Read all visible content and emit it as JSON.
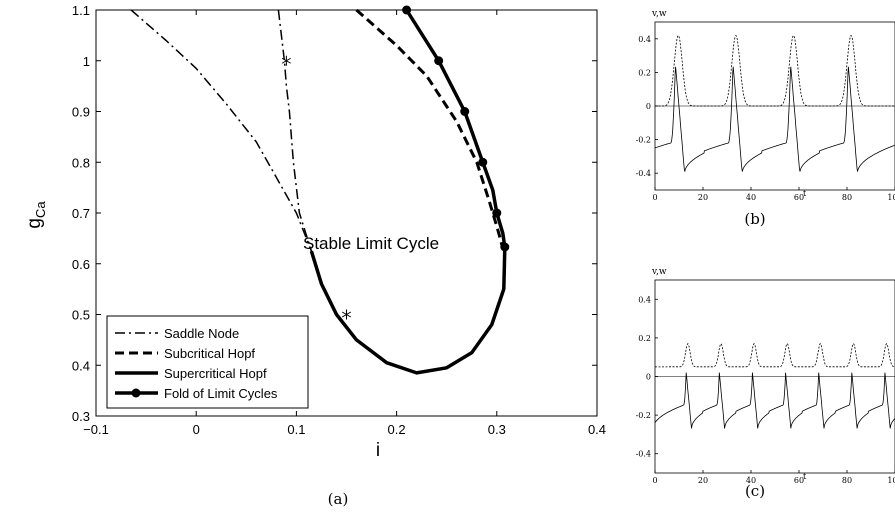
{
  "chart_data": [
    {
      "type": "line",
      "panel_label": "(a)",
      "xlabel": "i",
      "ylabel": "g",
      "ylabel_sub": "Ca",
      "xlim": [
        -0.1,
        0.4
      ],
      "ylim": [
        0.3,
        1.1
      ],
      "x_ticks": [
        -0.1,
        0,
        0.1,
        0.2,
        0.3,
        0.4
      ],
      "x_tick_labels": [
        "−0.1",
        "0",
        "0.1",
        "0.2",
        "0.3",
        "0.4"
      ],
      "y_ticks": [
        0.3,
        0.4,
        0.5,
        0.6,
        0.7,
        0.8,
        0.9,
        1,
        1.1
      ],
      "y_tick_labels": [
        "0.3",
        "0.4",
        "0.5",
        "0.6",
        "0.7",
        "0.8",
        "0.9",
        "1",
        "1.1"
      ],
      "grid": false,
      "legend_position": "bottom-left",
      "annotation": "Stable Limit Cycle",
      "series": [
        {
          "name": "Saddle Node",
          "style": "dashdot",
          "segments": [
            [
              [
                -0.065,
                1.1
              ],
              [
                -0.03,
                1.04
              ],
              [
                0,
                0.985
              ],
              [
                0.03,
                0.915
              ],
              [
                0.06,
                0.84
              ],
              [
                0.08,
                0.77
              ],
              [
                0.1,
                0.7
              ],
              [
                0.115,
                0.625
              ]
            ],
            [
              [
                0.082,
                1.1
              ],
              [
                0.085,
                1.05
              ],
              [
                0.088,
                1.0
              ],
              [
                0.09,
                0.95
              ],
              [
                0.093,
                0.9
              ],
              [
                0.097,
                0.8
              ],
              [
                0.103,
                0.7
              ],
              [
                0.115,
                0.625
              ]
            ]
          ]
        },
        {
          "name": "Subcritical Hopf",
          "style": "dashed",
          "segments": [
            [
              [
                0.16,
                1.1
              ],
              [
                0.2,
                1.03
              ],
              [
                0.23,
                0.97
              ],
              [
                0.26,
                0.88
              ],
              [
                0.28,
                0.8
              ],
              [
                0.293,
                0.72
              ],
              [
                0.302,
                0.66
              ],
              [
                0.306,
                0.63
              ]
            ]
          ]
        },
        {
          "name": "Supercritical Hopf",
          "style": "solid",
          "segments": [
            [
              [
                0.115,
                0.625
              ],
              [
                0.125,
                0.56
              ],
              [
                0.14,
                0.5
              ],
              [
                0.16,
                0.45
              ],
              [
                0.19,
                0.405
              ],
              [
                0.22,
                0.385
              ],
              [
                0.25,
                0.395
              ],
              [
                0.275,
                0.425
              ],
              [
                0.295,
                0.48
              ],
              [
                0.307,
                0.55
              ],
              [
                0.308,
                0.63
              ]
            ]
          ]
        },
        {
          "name": "Fold of Limit Cycles",
          "style": "solid-markers",
          "segments": [
            [
              [
                0.21,
                1.1
              ],
              [
                0.242,
                1.0
              ],
              [
                0.268,
                0.9
              ],
              [
                0.286,
                0.8
              ],
              [
                0.296,
                0.745
              ],
              [
                0.3,
                0.7
              ],
              [
                0.306,
                0.66
              ],
              [
                0.308,
                0.633
              ]
            ]
          ],
          "markers": [
            [
              0.21,
              1.1
            ],
            [
              0.242,
              1.0
            ],
            [
              0.268,
              0.9
            ],
            [
              0.286,
              0.8
            ],
            [
              0.3,
              0.7
            ],
            [
              0.308,
              0.633
            ]
          ]
        }
      ],
      "star_markers": [
        [
          0.09,
          1.0
        ],
        [
          0.15,
          0.5
        ]
      ]
    },
    {
      "type": "line",
      "panel_label": "(b)",
      "title": "v,w",
      "xlabel": "t",
      "xlim": [
        0,
        100
      ],
      "ylim": [
        -0.5,
        0.5
      ],
      "x_ticks": [
        0,
        20,
        40,
        60,
        80,
        100
      ],
      "x_tick_labels": [
        "0",
        "20",
        "40",
        "60",
        "80",
        "100"
      ],
      "y_ticks": [
        -0.4,
        -0.2,
        0,
        0.2,
        0.4
      ],
      "y_tick_labels": [
        "-0.4",
        "-0.2",
        "0",
        "0.2",
        "0.4"
      ],
      "zero_line": true,
      "period": 24,
      "spike_times": [
        8.5,
        32.5,
        56.5,
        80.5
      ],
      "v_peak": 0.25,
      "v_trough": -0.4,
      "w_peak": 0.42,
      "w_base": 0.0
    },
    {
      "type": "line",
      "panel_label": "(c)",
      "title": "v,w",
      "xlabel": "t",
      "xlim": [
        0,
        100
      ],
      "ylim": [
        -0.5,
        0.5
      ],
      "x_ticks": [
        0,
        20,
        40,
        60,
        80,
        100
      ],
      "x_tick_labels": [
        "0",
        "20",
        "40",
        "60",
        "80",
        "100"
      ],
      "y_ticks": [
        -0.4,
        -0.2,
        0,
        0.2,
        0.4
      ],
      "y_tick_labels": [
        "-0.4",
        "-0.2",
        "0",
        "0.2",
        "0.4"
      ],
      "zero_line": true,
      "period": 13.8,
      "spike_times": [
        13,
        26.8,
        40.6,
        54.4,
        68.2,
        82,
        95.8
      ],
      "v_peak": 0.02,
      "v_trough": -0.27,
      "w_peak": 0.17,
      "w_base": 0.05
    }
  ]
}
